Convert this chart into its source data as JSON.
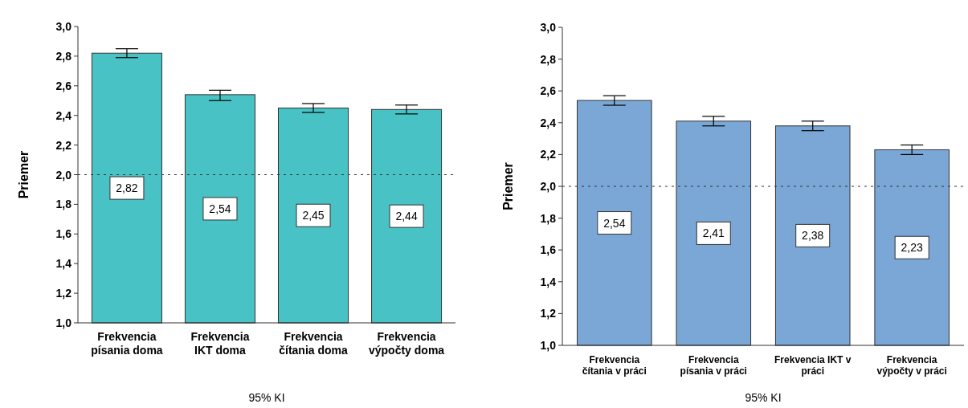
{
  "chart_data": [
    {
      "type": "bar",
      "xlabel": "95% KI",
      "ylabel": "Priemer",
      "categories": [
        "Frekvencia písania doma",
        "Frekvencia IKT doma",
        "Frekvencia čítania doma",
        "Frekvencia výpočty doma"
      ],
      "values": [
        2.82,
        2.54,
        2.45,
        2.44
      ],
      "value_labels": [
        "2,82",
        "2,54",
        "2,45",
        "2,44"
      ],
      "errors": [
        [
          2.79,
          2.85
        ],
        [
          2.5,
          2.57
        ],
        [
          2.42,
          2.48
        ],
        [
          2.41,
          2.47
        ]
      ],
      "color": "#48c2c5",
      "ylim": [
        1.0,
        3.0
      ],
      "yticks": [
        {
          "value": 1.0,
          "label": "1,0"
        },
        {
          "value": 1.2,
          "label": "1,2"
        },
        {
          "value": 1.4,
          "label": "1,4"
        },
        {
          "value": 1.6,
          "label": "1,6"
        },
        {
          "value": 1.8,
          "label": "1,8"
        },
        {
          "value": 2.0,
          "label": "2,0"
        },
        {
          "value": 2.2,
          "label": "2,2"
        },
        {
          "value": 2.4,
          "label": "2,4"
        },
        {
          "value": 2.6,
          "label": "2,6"
        },
        {
          "value": 2.8,
          "label": "2,8"
        },
        {
          "value": 3.0,
          "label": "3,0"
        }
      ],
      "ref_lines": [
        {
          "axis": "y",
          "value": 2.0,
          "line_style": "dashed"
        }
      ]
    },
    {
      "type": "bar",
      "xlabel": "95% KI",
      "ylabel": "Priemer",
      "categories": [
        "Frekvencia čítania v práci",
        "Frekvencia písania v práci",
        "Frekvencia IKT v práci",
        "Frekvencia výpočty v práci"
      ],
      "values": [
        2.54,
        2.41,
        2.38,
        2.23
      ],
      "value_labels": [
        "2,54",
        "2,41",
        "2,38",
        "2,23"
      ],
      "errors": [
        [
          2.51,
          2.57
        ],
        [
          2.38,
          2.44
        ],
        [
          2.35,
          2.41
        ],
        [
          2.2,
          2.26
        ]
      ],
      "color": "#7ba7d6",
      "ylim": [
        1.0,
        3.0
      ],
      "yticks": [
        {
          "value": 1.0,
          "label": "1,0"
        },
        {
          "value": 1.2,
          "label": "1,2"
        },
        {
          "value": 1.4,
          "label": "1,4"
        },
        {
          "value": 1.6,
          "label": "1,6"
        },
        {
          "value": 1.8,
          "label": "1,8"
        },
        {
          "value": 2.0,
          "label": "2,0"
        },
        {
          "value": 2.2,
          "label": "2,2"
        },
        {
          "value": 2.4,
          "label": "2,4"
        },
        {
          "value": 2.6,
          "label": "2,6"
        },
        {
          "value": 2.8,
          "label": "2,8"
        },
        {
          "value": 3.0,
          "label": "3,0"
        }
      ],
      "ref_lines": [
        {
          "axis": "y",
          "value": 2.0,
          "line_style": "dashed"
        }
      ]
    }
  ]
}
